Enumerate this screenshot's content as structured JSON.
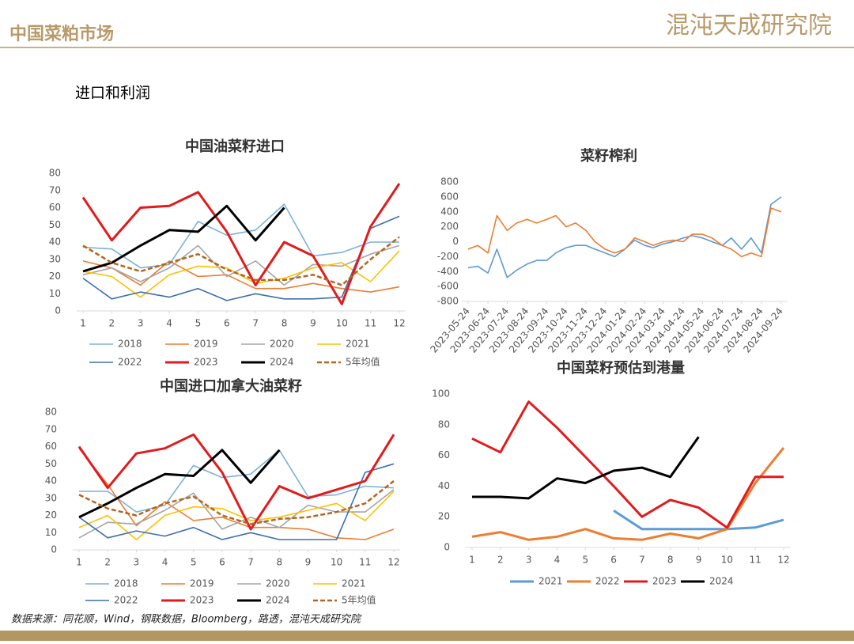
{
  "header": {
    "title": "中国菜粕市场",
    "logo": "混沌天成研究院"
  },
  "subtitle": "进口和利润",
  "source": "数据来源：同花顺，Wind，钢联数据，Bloomberg，路透，混沌天成研究院",
  "chart_data": [
    {
      "type": "line",
      "title": "中国油菜籽进口",
      "x": [
        1,
        2,
        3,
        4,
        5,
        6,
        7,
        8,
        9,
        10,
        11,
        12
      ],
      "xlim": [
        1,
        12
      ],
      "xticks": [
        1,
        2,
        3,
        4,
        5,
        6,
        7,
        8,
        9,
        10,
        11,
        12
      ],
      "ylim": [
        0,
        80
      ],
      "yticks": [
        0,
        10,
        20,
        30,
        40,
        50,
        60,
        70,
        80
      ],
      "legend": "bottom",
      "series": [
        {
          "name": "2018",
          "color": "#7eb0dc",
          "values": [
            37,
            36,
            25,
            27,
            52,
            44,
            47,
            62,
            32,
            34,
            40,
            40
          ]
        },
        {
          "name": "2019",
          "color": "#ed7d31",
          "values": [
            29,
            25,
            15,
            29,
            20,
            21,
            13,
            13,
            16,
            13,
            11,
            14
          ]
        },
        {
          "name": "2020",
          "color": "#a5a5a5",
          "values": [
            21,
            25,
            17,
            25,
            38,
            20,
            29,
            15,
            27,
            26,
            33,
            38
          ]
        },
        {
          "name": "2021",
          "color": "#ffc000",
          "values": [
            23,
            20,
            8,
            21,
            26,
            25,
            16,
            19,
            25,
            28,
            17,
            35
          ]
        },
        {
          "name": "2022",
          "color": "#3f6fb0",
          "values": [
            19,
            7,
            11,
            8,
            13,
            6,
            10,
            7,
            7,
            8,
            48,
            55
          ]
        },
        {
          "name": "2023",
          "color": "#e31a1c",
          "width": 3,
          "values": [
            66,
            41,
            60,
            61,
            69,
            46,
            15,
            40,
            32,
            4,
            49,
            74
          ]
        },
        {
          "name": "2024",
          "color": "#000000",
          "width": 3,
          "values": [
            23,
            28,
            38,
            47,
            46,
            61,
            41,
            60,
            null,
            null,
            null,
            null
          ]
        },
        {
          "name": "5年均值",
          "color": "#b5651d",
          "dash": true,
          "values": [
            38,
            28,
            23,
            28,
            33,
            24,
            18,
            18,
            21,
            15,
            30,
            43
          ]
        }
      ]
    },
    {
      "type": "line",
      "title": "菜籽榨利",
      "x": [
        "2023-05-24",
        "2023-06-08",
        "2023-06-24",
        "2023-07-08",
        "2023-07-24",
        "2023-08-08",
        "2023-08-24",
        "2023-09-08",
        "2023-09-24",
        "2023-10-08",
        "2023-10-24",
        "2023-11-08",
        "2023-11-24",
        "2023-12-08",
        "2023-12-24",
        "2024-01-08",
        "2024-01-24",
        "2024-02-08",
        "2024-02-24",
        "2024-03-08",
        "2024-03-24",
        "2024-04-08",
        "2024-04-24",
        "2024-05-08",
        "2024-05-24",
        "2024-06-08",
        "2024-06-24",
        "2024-07-08",
        "2024-07-24",
        "2024-08-08",
        "2024-08-24",
        "2024-09-08",
        "2024-09-24"
      ],
      "xlim": [
        "2023-05-24",
        "2024-09-24"
      ],
      "xticks": [
        "2023-05-24",
        "2023-06-24",
        "2023-07-24",
        "2023-08-24",
        "2023-09-24",
        "2023-10-24",
        "2023-11-24",
        "2023-12-24",
        "2024-01-24",
        "2024-02-24",
        "2024-03-24",
        "2024-04-24",
        "2024-05-24",
        "2024-06-24",
        "2024-07-24",
        "2024-08-24",
        "2024-09-24"
      ],
      "ylim": [
        -800,
        800
      ],
      "yticks": [
        -800,
        -600,
        -400,
        -200,
        0,
        200,
        400,
        600,
        800
      ],
      "series": [
        {
          "color": "#5b9bd5",
          "values": [
            -350,
            -330,
            -420,
            -100,
            -480,
            -380,
            -300,
            -250,
            -250,
            -150,
            -80,
            -50,
            -50,
            -100,
            -150,
            -200,
            -100,
            20,
            -50,
            -80,
            -30,
            0,
            50,
            80,
            50,
            0,
            -50,
            50,
            -100,
            50,
            -150,
            500,
            600
          ]
        },
        {
          "color": "#ed7d31",
          "values": [
            -100,
            -50,
            -150,
            350,
            150,
            250,
            300,
            250,
            300,
            350,
            200,
            250,
            150,
            0,
            -100,
            -150,
            -100,
            50,
            0,
            -50,
            0,
            20,
            0,
            100,
            100,
            50,
            -50,
            -100,
            -200,
            -150,
            -200,
            450,
            400
          ]
        }
      ]
    },
    {
      "type": "line",
      "title": "中国进口加拿大油菜籽",
      "x": [
        1,
        2,
        3,
        4,
        5,
        6,
        7,
        8,
        9,
        10,
        11,
        12
      ],
      "xlim": [
        1,
        12
      ],
      "xticks": [
        1,
        2,
        3,
        4,
        5,
        6,
        7,
        8,
        9,
        10,
        11,
        12
      ],
      "ylim": [
        0,
        80
      ],
      "yticks": [
        0,
        10,
        20,
        30,
        40,
        50,
        60,
        70,
        80
      ],
      "legend": "bottom",
      "series": [
        {
          "name": "2018",
          "color": "#7eb0dc",
          "values": [
            34,
            34,
            22,
            26,
            49,
            42,
            44,
            58,
            31,
            32,
            37,
            36
          ]
        },
        {
          "name": "2019",
          "color": "#ed7d31",
          "values": [
            59,
            38,
            14,
            28,
            17,
            19,
            13,
            13,
            12,
            7,
            6,
            12
          ]
        },
        {
          "name": "2020",
          "color": "#a5a5a5",
          "values": [
            7,
            16,
            15,
            23,
            33,
            12,
            19,
            13,
            26,
            22,
            22,
            35
          ]
        },
        {
          "name": "2021",
          "color": "#ffc000",
          "values": [
            13,
            20,
            6,
            20,
            25,
            24,
            17,
            19,
            23,
            27,
            17,
            34
          ]
        },
        {
          "name": "2022",
          "color": "#3f6fb0",
          "values": [
            19,
            7,
            11,
            8,
            13,
            6,
            10,
            6,
            6,
            6,
            45,
            50
          ]
        },
        {
          "name": "2023",
          "color": "#e31a1c",
          "width": 3,
          "values": [
            60,
            36,
            56,
            59,
            67,
            45,
            12,
            37,
            30,
            35,
            40,
            67
          ]
        },
        {
          "name": "2024",
          "color": "#000000",
          "width": 3,
          "values": [
            19,
            27,
            36,
            44,
            43,
            58,
            39,
            58,
            null,
            null,
            null,
            null
          ]
        },
        {
          "name": "5年均值",
          "color": "#b5651d",
          "dash": true,
          "values": [
            32,
            24,
            20,
            27,
            31,
            20,
            15,
            18,
            19,
            22,
            27,
            40
          ]
        }
      ]
    },
    {
      "type": "line",
      "title": "中国菜籽预估到港量",
      "x": [
        1,
        2,
        3,
        4,
        5,
        6,
        7,
        8,
        9,
        10,
        11,
        12
      ],
      "xlim": [
        1,
        12
      ],
      "xticks": [
        1,
        2,
        3,
        4,
        5,
        6,
        7,
        8,
        9,
        10,
        11,
        12
      ],
      "ylim": [
        0,
        100
      ],
      "yticks": [
        0,
        20,
        40,
        60,
        80,
        100
      ],
      "legend": "bottom",
      "series": [
        {
          "name": "2021",
          "color": "#5b9bd5",
          "width": 3,
          "values": [
            null,
            null,
            null,
            null,
            null,
            24,
            12,
            12,
            12,
            12,
            13,
            18
          ]
        },
        {
          "name": "2022",
          "color": "#ed7d31",
          "width": 3,
          "values": [
            7,
            10,
            5,
            7,
            12,
            6,
            5,
            9,
            6,
            12,
            42,
            65
          ]
        },
        {
          "name": "2023",
          "color": "#e31a1c",
          "width": 3,
          "values": [
            71,
            62,
            95,
            78,
            59,
            40,
            20,
            31,
            26,
            13,
            46,
            46
          ]
        },
        {
          "name": "2024",
          "color": "#000000",
          "width": 3,
          "values": [
            33,
            33,
            32,
            45,
            42,
            50,
            52,
            46,
            72,
            null,
            null,
            null
          ]
        }
      ]
    }
  ]
}
